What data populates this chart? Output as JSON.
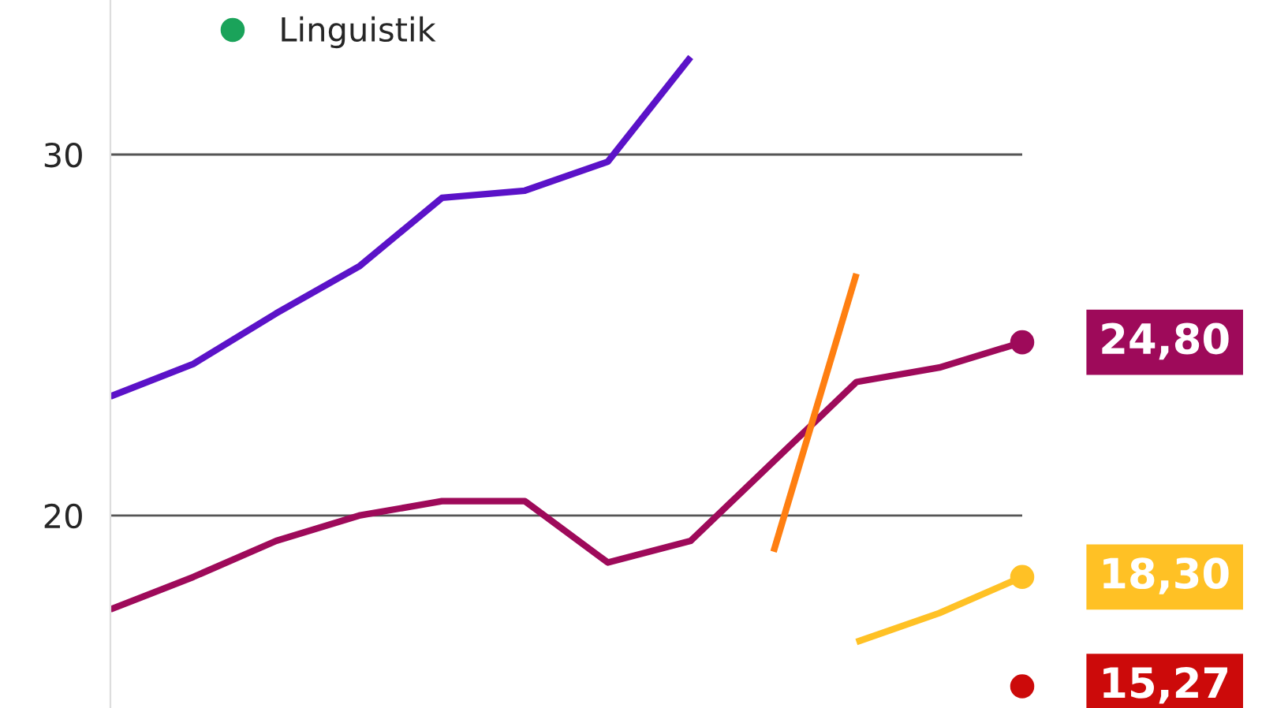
{
  "chart_data": {
    "type": "line",
    "categories": [
      null,
      null,
      null,
      null,
      null,
      null,
      null,
      null,
      null,
      null,
      null,
      null
    ],
    "series": [
      {
        "name": "Linguistik",
        "color": "#1aa35a",
        "values": [
          null,
          null,
          null,
          null,
          null,
          null,
          null,
          null,
          null,
          null,
          null,
          null
        ],
        "value_labels": [
          null,
          null,
          null,
          null,
          null,
          null,
          null,
          null,
          null,
          null,
          null,
          null
        ]
      },
      {
        "color": "#5b12c8",
        "values": [
          23.3,
          24.2,
          25.6,
          26.9,
          28.8,
          29.0,
          29.8,
          32.7,
          null,
          null,
          null,
          null
        ],
        "value_labels": [
          null,
          null,
          null,
          null,
          null,
          null,
          null,
          null,
          null,
          null,
          null,
          null
        ]
      },
      {
        "color": "#9e0a5a",
        "values": [
          17.4,
          18.3,
          19.3,
          20.0,
          20.4,
          20.4,
          18.7,
          19.3,
          21.5,
          23.7,
          24.1,
          24.8
        ],
        "value_labels": [
          null,
          null,
          null,
          null,
          null,
          null,
          null,
          null,
          null,
          null,
          null,
          "24,80"
        ]
      },
      {
        "color": "#ff7f11",
        "values": [
          null,
          null,
          null,
          null,
          null,
          null,
          null,
          null,
          19.0,
          26.7,
          null,
          null
        ],
        "value_labels": [
          null,
          null,
          null,
          null,
          null,
          null,
          null,
          null,
          null,
          null,
          null,
          null
        ]
      },
      {
        "color": "#ffc125",
        "values": [
          null,
          null,
          null,
          null,
          null,
          null,
          null,
          null,
          null,
          16.5,
          17.3,
          18.3
        ],
        "value_labels": [
          null,
          null,
          null,
          null,
          null,
          null,
          null,
          null,
          null,
          null,
          null,
          "18,30"
        ]
      },
      {
        "color": "#cc0a0a",
        "marker": "circle",
        "values": [
          null,
          null,
          null,
          null,
          null,
          null,
          null,
          null,
          null,
          null,
          null,
          15.27
        ],
        "value_labels": [
          null,
          null,
          null,
          null,
          null,
          null,
          null,
          null,
          null,
          null,
          null,
          "15,27"
        ]
      }
    ],
    "ylim": [
      14.67,
      34.28
    ],
    "yticks": [
      20,
      30
    ],
    "grid": "y",
    "legend": "top left"
  }
}
